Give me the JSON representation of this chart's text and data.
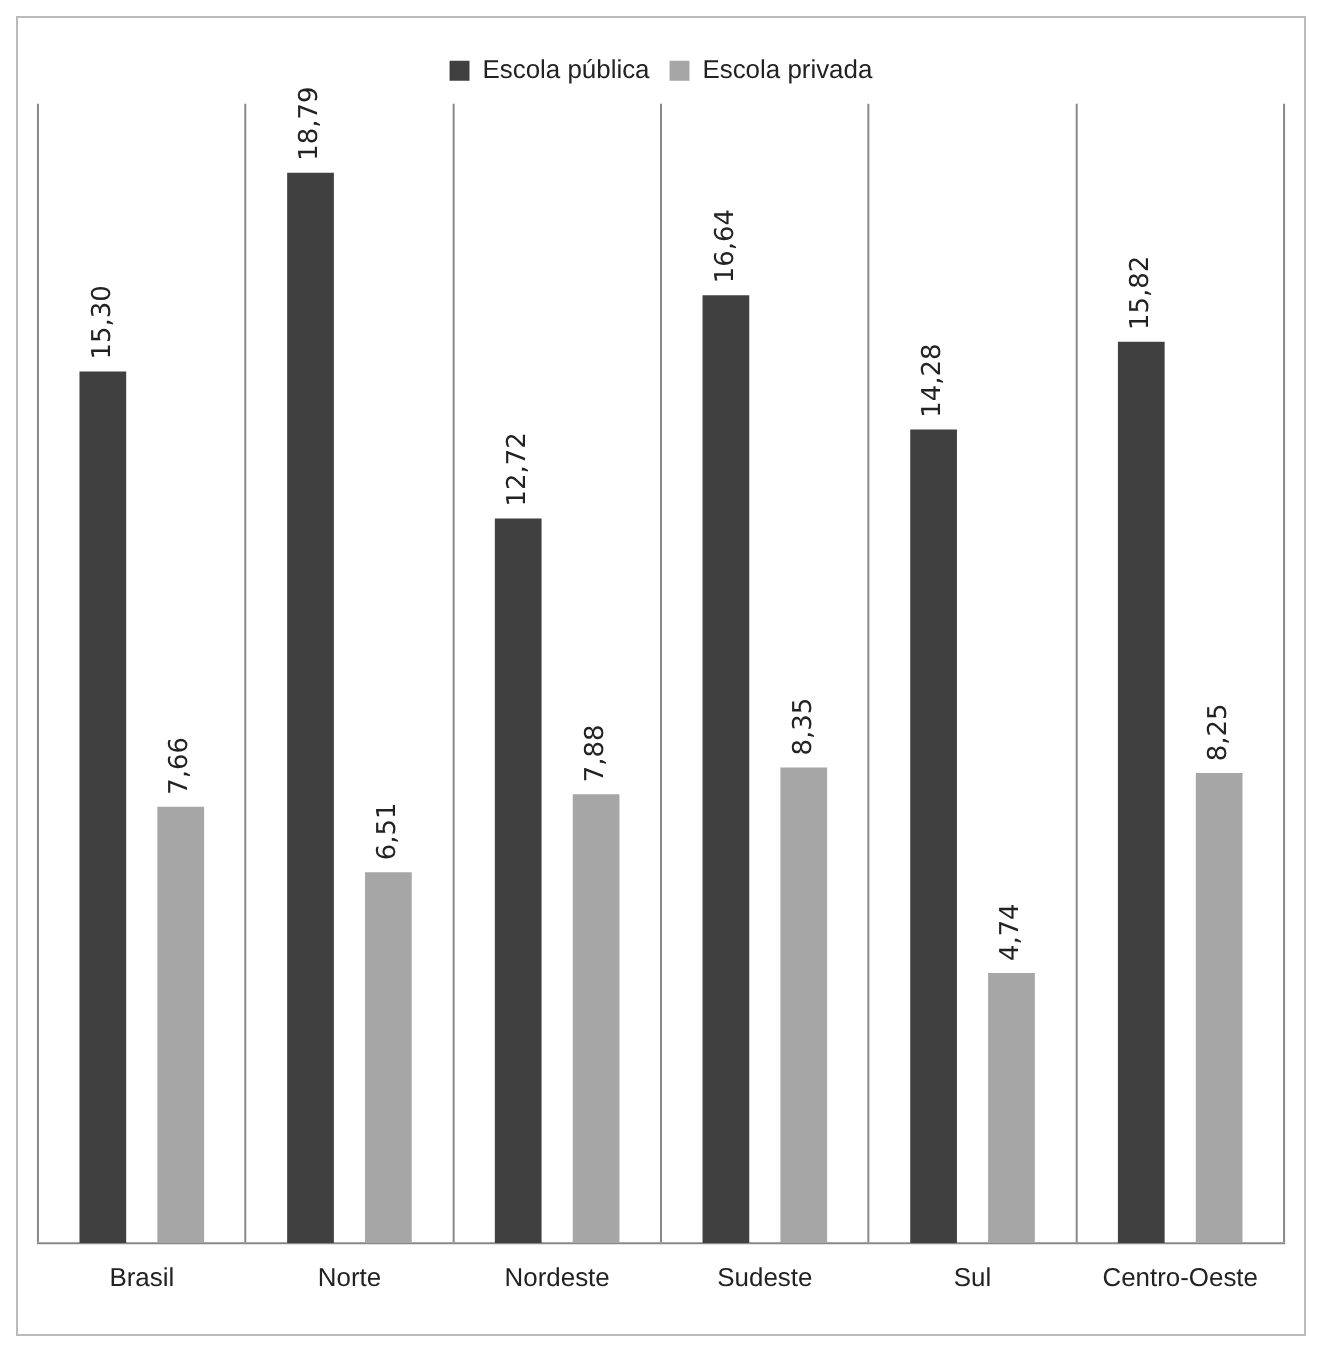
{
  "chart_data": {
    "type": "bar",
    "categories": [
      "Brasil",
      "Norte",
      "Nordeste",
      "Sudeste",
      "Sul",
      "Centro-Oeste"
    ],
    "series": [
      {
        "name": "Escola pública",
        "color": "#404040",
        "values": [
          15.3,
          18.79,
          12.72,
          16.64,
          14.28,
          15.82
        ],
        "value_labels": [
          "15,30",
          "18,79",
          "12,72",
          "16,64",
          "14,28",
          "15,82"
        ]
      },
      {
        "name": "Escola privada",
        "color": "#a6a6a6",
        "values": [
          7.66,
          6.51,
          7.88,
          8.35,
          4.74,
          8.25
        ],
        "value_labels": [
          "7,66",
          "6,51",
          "7,88",
          "8,35",
          "4,74",
          "8,25"
        ]
      }
    ],
    "grid": "x",
    "legend": "top"
  }
}
